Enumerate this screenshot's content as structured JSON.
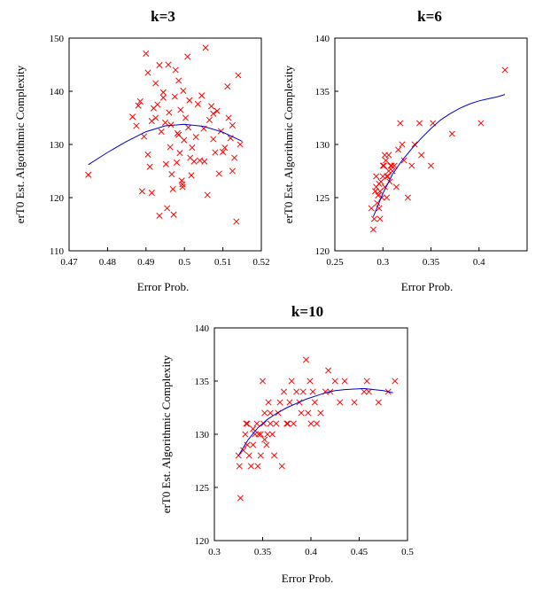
{
  "colors": {
    "marker": "#ff0000",
    "fit_line": "#0000cc",
    "frame": "#000000",
    "background": "#ffffff"
  },
  "chart_data": [
    {
      "type": "scatter",
      "title": "k=3",
      "xlabel": "Error Prob.",
      "ylabel": "erT0 Est. Algorithmic Complexity",
      "xlim": [
        0.47,
        0.52
      ],
      "ylim": [
        110,
        150
      ],
      "x_ticks": [
        0.47,
        0.48,
        0.49,
        0.5,
        0.51,
        0.52
      ],
      "x_tick_labels": [
        "0.47",
        "0.48",
        "0.49",
        "0.5",
        "0.51",
        "0.52"
      ],
      "y_ticks": [
        110,
        120,
        130,
        140,
        150
      ],
      "y_tick_labels": [
        "110",
        "120",
        "130",
        "140",
        "150"
      ],
      "series": [
        {
          "name": "samples",
          "marker": "x",
          "points": [
            [
              0.475,
              124.3
            ],
            [
              0.4865,
              135.2
            ],
            [
              0.4875,
              133.5
            ],
            [
              0.488,
              137.3
            ],
            [
              0.4885,
              138.1
            ],
            [
              0.489,
              121.2
            ],
            [
              0.4895,
              131.5
            ],
            [
              0.49,
              147.1
            ],
            [
              0.4905,
              128.1
            ],
            [
              0.491,
              125.8
            ],
            [
              0.4915,
              120.9
            ],
            [
              0.492,
              136.8
            ],
            [
              0.4925,
              135.0
            ],
            [
              0.493,
              137.5
            ],
            [
              0.4935,
              116.6
            ],
            [
              0.494,
              132.4
            ],
            [
              0.4945,
              139.8
            ],
            [
              0.495,
              134.1
            ],
            [
              0.4952,
              126.3
            ],
            [
              0.4955,
              118.0
            ],
            [
              0.4958,
              145.0
            ],
            [
              0.496,
              136.0
            ],
            [
              0.4963,
              129.5
            ],
            [
              0.4967,
              124.4
            ],
            [
              0.497,
              121.6
            ],
            [
              0.4972,
              116.8
            ],
            [
              0.4975,
              139.0
            ],
            [
              0.4977,
              144.0
            ],
            [
              0.498,
              126.6
            ],
            [
              0.4982,
              132.1
            ],
            [
              0.4985,
              142.0
            ],
            [
              0.4988,
              128.4
            ],
            [
              0.499,
              136.5
            ],
            [
              0.4993,
              123.2
            ],
            [
              0.4995,
              122.0
            ],
            [
              0.4997,
              140.1
            ],
            [
              0.4999,
              130.8
            ],
            [
              0.5003,
              135.0
            ],
            [
              0.5008,
              146.5
            ],
            [
              0.501,
              133.2
            ],
            [
              0.5013,
              138.3
            ],
            [
              0.5018,
              124.2
            ],
            [
              0.502,
              129.4
            ],
            [
              0.5025,
              126.8
            ],
            [
              0.503,
              131.4
            ],
            [
              0.5035,
              137.6
            ],
            [
              0.504,
              127.0
            ],
            [
              0.5045,
              139.2
            ],
            [
              0.505,
              133.0
            ],
            [
              0.5055,
              148.2
            ],
            [
              0.506,
              120.5
            ],
            [
              0.5065,
              134.6
            ],
            [
              0.507,
              137.2
            ],
            [
              0.5075,
              131.0
            ],
            [
              0.508,
              128.5
            ],
            [
              0.5085,
              136.3
            ],
            [
              0.509,
              124.5
            ],
            [
              0.5095,
              132.5
            ],
            [
              0.51,
              128.6
            ],
            [
              0.5105,
              129.4
            ],
            [
              0.5112,
              140.9
            ],
            [
              0.5115,
              135.0
            ],
            [
              0.512,
              131.2
            ],
            [
              0.5125,
              133.6
            ],
            [
              0.513,
              127.5
            ],
            [
              0.5135,
              115.5
            ],
            [
              0.514,
              143.0
            ],
            [
              0.5145,
              130.0
            ],
            [
              0.4925,
              141.5
            ],
            [
              0.4965,
              133.7
            ],
            [
              0.5015,
              127.5
            ],
            [
              0.4945,
              138.8
            ],
            [
              0.5075,
              135.8
            ],
            [
              0.4905,
              143.5
            ],
            [
              0.4985,
              131.8
            ],
            [
              0.5052,
              126.8
            ],
            [
              0.4935,
              144.9
            ],
            [
              0.4995,
              122.5
            ],
            [
              0.5125,
              125.0
            ],
            [
              0.4915,
              134.4
            ]
          ]
        },
        {
          "name": "fit",
          "marker": "line",
          "points": [
            [
              0.475,
              126.2
            ],
            [
              0.48,
              128.5
            ],
            [
              0.485,
              130.6
            ],
            [
              0.49,
              132.4
            ],
            [
              0.495,
              133.5
            ],
            [
              0.5,
              133.8
            ],
            [
              0.505,
              133.4
            ],
            [
              0.51,
              132.3
            ],
            [
              0.515,
              130.6
            ]
          ]
        }
      ]
    },
    {
      "type": "scatter",
      "title": "k=6",
      "xlabel": "Error Prob.",
      "ylabel": "erT0 Est. Algorithmic Complexity",
      "xlim": [
        0.25,
        0.45
      ],
      "ylim": [
        120,
        140
      ],
      "x_ticks": [
        0.25,
        0.3,
        0.35,
        0.4
      ],
      "x_tick_labels": [
        "0.25",
        "0.3",
        "0.35",
        "0.4"
      ],
      "y_ticks": [
        120,
        125,
        130,
        135,
        140
      ],
      "y_tick_labels": [
        "120",
        "125",
        "130",
        "135",
        "140"
      ],
      "series": [
        {
          "name": "samples",
          "marker": "x",
          "points": [
            [
              0.288,
              124.0
            ],
            [
              0.29,
              122.0
            ],
            [
              0.291,
              123.0
            ],
            [
              0.292,
              125.6
            ],
            [
              0.293,
              126.0
            ],
            [
              0.294,
              124.5
            ],
            [
              0.295,
              125.2
            ],
            [
              0.296,
              126.3
            ],
            [
              0.297,
              123.0
            ],
            [
              0.298,
              126.5
            ],
            [
              0.299,
              125.0
            ],
            [
              0.3,
              127.0
            ],
            [
              0.301,
              128.0
            ],
            [
              0.302,
              126.0
            ],
            [
              0.303,
              128.5
            ],
            [
              0.304,
              125.0
            ],
            [
              0.305,
              127.0
            ],
            [
              0.306,
              129.0
            ],
            [
              0.307,
              126.5
            ],
            [
              0.308,
              128.0
            ],
            [
              0.31,
              127.5
            ],
            [
              0.312,
              128.0
            ],
            [
              0.314,
              126.0
            ],
            [
              0.316,
              129.5
            ],
            [
              0.318,
              132.0
            ],
            [
              0.32,
              130.0
            ],
            [
              0.322,
              128.5
            ],
            [
              0.326,
              125.0
            ],
            [
              0.33,
              128.0
            ],
            [
              0.333,
              130.0
            ],
            [
              0.338,
              132.0
            ],
            [
              0.34,
              129.0
            ],
            [
              0.35,
              128.0
            ],
            [
              0.352,
              132.0
            ],
            [
              0.372,
              131.0
            ],
            [
              0.402,
              132.0
            ],
            [
              0.427,
              137.0
            ],
            [
              0.296,
              124.0
            ],
            [
              0.3,
              128.0
            ],
            [
              0.304,
              127.0
            ],
            [
              0.297,
              125.6
            ],
            [
              0.293,
              127.0
            ],
            [
              0.309,
              128.0
            ],
            [
              0.302,
              129.0
            ],
            [
              0.306,
              127.5
            ]
          ]
        },
        {
          "name": "fit",
          "marker": "line",
          "points": [
            [
              0.29,
              123.2
            ],
            [
              0.3,
              125.4
            ],
            [
              0.31,
              127.2
            ],
            [
              0.32,
              128.5
            ],
            [
              0.33,
              129.6
            ],
            [
              0.34,
              130.6
            ],
            [
              0.35,
              131.5
            ],
            [
              0.36,
              132.3
            ],
            [
              0.37,
              132.9
            ],
            [
              0.38,
              133.4
            ],
            [
              0.39,
              133.8
            ],
            [
              0.4,
              134.1
            ],
            [
              0.41,
              134.3
            ],
            [
              0.42,
              134.5
            ],
            [
              0.427,
              134.7
            ]
          ]
        }
      ]
    },
    {
      "type": "scatter",
      "title": "k=10",
      "xlabel": "Error Prob.",
      "ylabel": "erT0 Est. Algorithmic Complexity",
      "xlim": [
        0.3,
        0.5
      ],
      "ylim": [
        120,
        140
      ],
      "x_ticks": [
        0.3,
        0.35,
        0.4,
        0.45,
        0.5
      ],
      "x_tick_labels": [
        "0.3",
        "0.35",
        "0.4",
        "0.45",
        "0.5"
      ],
      "y_ticks": [
        120,
        125,
        130,
        135,
        140
      ],
      "y_tick_labels": [
        "120",
        "125",
        "130",
        "135",
        "140"
      ],
      "series": [
        {
          "name": "samples",
          "marker": "x",
          "points": [
            [
              0.325,
              128.0
            ],
            [
              0.326,
              127.0
            ],
            [
              0.327,
              124.0
            ],
            [
              0.33,
              128.5
            ],
            [
              0.332,
              130.0
            ],
            [
              0.333,
              131.0
            ],
            [
              0.334,
              129.0
            ],
            [
              0.336,
              128.0
            ],
            [
              0.338,
              127.0
            ],
            [
              0.34,
              129.0
            ],
            [
              0.342,
              130.0
            ],
            [
              0.344,
              131.0
            ],
            [
              0.345,
              127.0
            ],
            [
              0.346,
              130.0
            ],
            [
              0.348,
              128.0
            ],
            [
              0.35,
              135.0
            ],
            [
              0.351,
              131.0
            ],
            [
              0.352,
              132.0
            ],
            [
              0.354,
              129.0
            ],
            [
              0.355,
              130.0
            ],
            [
              0.356,
              133.0
            ],
            [
              0.358,
              131.0
            ],
            [
              0.36,
              130.0
            ],
            [
              0.362,
              128.0
            ],
            [
              0.364,
              131.0
            ],
            [
              0.366,
              132.0
            ],
            [
              0.368,
              133.0
            ],
            [
              0.37,
              127.0
            ],
            [
              0.372,
              134.0
            ],
            [
              0.375,
              131.0
            ],
            [
              0.378,
              133.0
            ],
            [
              0.38,
              135.0
            ],
            [
              0.382,
              131.0
            ],
            [
              0.385,
              134.0
            ],
            [
              0.388,
              133.0
            ],
            [
              0.39,
              132.0
            ],
            [
              0.392,
              134.0
            ],
            [
              0.395,
              137.0
            ],
            [
              0.397,
              132.0
            ],
            [
              0.399,
              135.0
            ],
            [
              0.4,
              131.0
            ],
            [
              0.402,
              134.0
            ],
            [
              0.404,
              133.0
            ],
            [
              0.406,
              131.0
            ],
            [
              0.41,
              132.0
            ],
            [
              0.415,
              134.0
            ],
            [
              0.418,
              136.0
            ],
            [
              0.42,
              134.0
            ],
            [
              0.425,
              135.0
            ],
            [
              0.43,
              133.0
            ],
            [
              0.435,
              135.0
            ],
            [
              0.445,
              133.0
            ],
            [
              0.455,
              134.0
            ],
            [
              0.458,
              135.0
            ],
            [
              0.46,
              134.0
            ],
            [
              0.47,
              133.0
            ],
            [
              0.48,
              134.0
            ],
            [
              0.487,
              135.0
            ],
            [
              0.334,
              131.0
            ],
            [
              0.348,
              130.0
            ],
            [
              0.358,
              132.0
            ],
            [
              0.376,
              131.0
            ],
            [
              0.34,
              130.5
            ],
            [
              0.352,
              129.5
            ]
          ]
        },
        {
          "name": "fit",
          "marker": "line",
          "points": [
            [
              0.325,
              128.0
            ],
            [
              0.335,
              129.5
            ],
            [
              0.345,
              130.6
            ],
            [
              0.355,
              131.4
            ],
            [
              0.365,
              132.0
            ],
            [
              0.375,
              132.5
            ],
            [
              0.385,
              132.9
            ],
            [
              0.395,
              133.3
            ],
            [
              0.405,
              133.6
            ],
            [
              0.415,
              133.9
            ],
            [
              0.425,
              134.1
            ],
            [
              0.435,
              134.2
            ],
            [
              0.445,
              134.25
            ],
            [
              0.455,
              134.3
            ],
            [
              0.465,
              134.2
            ],
            [
              0.475,
              134.1
            ],
            [
              0.485,
              133.9
            ]
          ]
        }
      ]
    }
  ]
}
